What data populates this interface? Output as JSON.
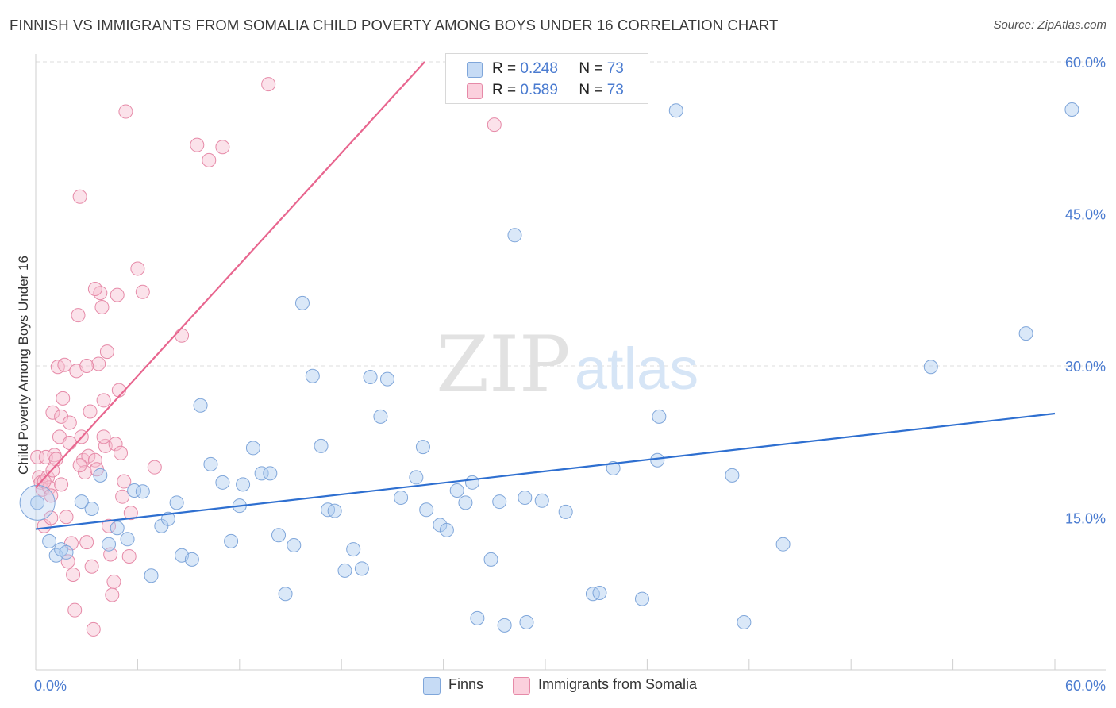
{
  "title": "FINNISH VS IMMIGRANTS FROM SOMALIA CHILD POVERTY AMONG BOYS UNDER 16 CORRELATION CHART",
  "source": "Source: ZipAtlas.com",
  "watermark": {
    "zip": "ZIP",
    "atlas": "atlas"
  },
  "legend": {
    "finns": {
      "r_label": "R =",
      "r_value": "0.248",
      "n_label": "N =",
      "n_value": "73"
    },
    "somalia": {
      "r_label": "R =",
      "r_value": "0.589",
      "n_label": "N =",
      "n_value": "73"
    }
  },
  "colors": {
    "finns_fill": "#aecbf0",
    "finns_stroke": "#7fa6da",
    "finns_line": "#2e6fd0",
    "somalia_fill": "#f7bfd0",
    "somalia_stroke": "#e68aa8",
    "somalia_line": "#e8668f",
    "axis_text": "#4a7bd0",
    "grid": "#dcdcdc"
  },
  "chart_data": {
    "type": "scatter",
    "title": "FINNISH VS IMMIGRANTS FROM SOMALIA CHILD POVERTY AMONG BOYS UNDER 16 CORRELATION CHART",
    "xlabel": "",
    "ylabel": "Child Poverty Among Boys Under 16",
    "xlim": [
      0,
      60
    ],
    "ylim": [
      0,
      60
    ],
    "x_tick_labels": [
      "0.0%",
      "60.0%"
    ],
    "y_ticks": [
      15,
      30,
      45,
      60
    ],
    "y_tick_labels": [
      "15.0%",
      "30.0%",
      "45.0%",
      "60.0%"
    ],
    "grid": true,
    "series": [
      {
        "name": "Finns",
        "r": 0.248,
        "n": 73,
        "trend": {
          "x": [
            0,
            60
          ],
          "y": [
            13.9,
            25.3
          ]
        },
        "points": [
          [
            0.1,
            16.5
          ],
          [
            0.8,
            12.7
          ],
          [
            1.2,
            11.3
          ],
          [
            1.5,
            11.9
          ],
          [
            1.8,
            11.6
          ],
          [
            2.7,
            16.6
          ],
          [
            3.3,
            15.9
          ],
          [
            3.8,
            19.2
          ],
          [
            4.3,
            12.4
          ],
          [
            4.8,
            14.0
          ],
          [
            5.4,
            12.9
          ],
          [
            5.8,
            17.7
          ],
          [
            6.3,
            17.6
          ],
          [
            6.8,
            9.3
          ],
          [
            7.4,
            14.2
          ],
          [
            7.8,
            14.9
          ],
          [
            8.3,
            16.5
          ],
          [
            8.6,
            11.3
          ],
          [
            9.2,
            10.9
          ],
          [
            9.7,
            26.1
          ],
          [
            10.3,
            20.3
          ],
          [
            11.0,
            18.5
          ],
          [
            11.5,
            12.7
          ],
          [
            12.0,
            16.2
          ],
          [
            12.2,
            18.3
          ],
          [
            12.8,
            21.9
          ],
          [
            13.3,
            19.4
          ],
          [
            13.8,
            19.4
          ],
          [
            14.3,
            13.3
          ],
          [
            14.7,
            7.5
          ],
          [
            15.2,
            12.3
          ],
          [
            15.7,
            36.2
          ],
          [
            16.3,
            29.0
          ],
          [
            16.8,
            22.1
          ],
          [
            17.2,
            15.8
          ],
          [
            17.6,
            15.7
          ],
          [
            18.2,
            9.8
          ],
          [
            18.7,
            11.9
          ],
          [
            19.2,
            10.0
          ],
          [
            19.7,
            28.9
          ],
          [
            20.3,
            25.0
          ],
          [
            20.7,
            28.7
          ],
          [
            21.5,
            17.0
          ],
          [
            22.4,
            19.0
          ],
          [
            22.8,
            22.0
          ],
          [
            23.0,
            15.8
          ],
          [
            23.8,
            14.3
          ],
          [
            24.2,
            13.8
          ],
          [
            24.8,
            17.7
          ],
          [
            25.3,
            16.5
          ],
          [
            25.7,
            18.5
          ],
          [
            26.0,
            5.1
          ],
          [
            26.8,
            10.9
          ],
          [
            27.3,
            16.6
          ],
          [
            27.6,
            4.4
          ],
          [
            28.2,
            42.9
          ],
          [
            28.8,
            17.0
          ],
          [
            28.9,
            4.7
          ],
          [
            29.8,
            16.7
          ],
          [
            31.2,
            15.6
          ],
          [
            32.8,
            7.5
          ],
          [
            33.2,
            7.6
          ],
          [
            34.0,
            19.9
          ],
          [
            35.7,
            7.0
          ],
          [
            36.6,
            20.7
          ],
          [
            36.7,
            25.0
          ],
          [
            37.7,
            55.2
          ],
          [
            41.0,
            19.2
          ],
          [
            41.7,
            4.7
          ],
          [
            44.0,
            12.4
          ],
          [
            52.7,
            29.9
          ],
          [
            58.3,
            33.2
          ],
          [
            61.0,
            55.3
          ]
        ]
      },
      {
        "name": "Immigrants from Somalia",
        "r": 0.589,
        "n": 73,
        "trend": {
          "x": [
            0,
            22.9
          ],
          "y": [
            18.0,
            60.0
          ]
        },
        "points": [
          [
            0.1,
            21.0
          ],
          [
            0.2,
            19.0
          ],
          [
            0.3,
            18.5
          ],
          [
            0.4,
            17.8
          ],
          [
            0.5,
            14.2
          ],
          [
            0.6,
            21.0
          ],
          [
            0.7,
            19.0
          ],
          [
            0.8,
            18.0
          ],
          [
            0.9,
            15.0
          ],
          [
            1.0,
            25.4
          ],
          [
            1.1,
            21.2
          ],
          [
            1.2,
            20.8
          ],
          [
            1.3,
            29.9
          ],
          [
            1.4,
            23.0
          ],
          [
            1.5,
            25.0
          ],
          [
            1.6,
            26.8
          ],
          [
            1.7,
            30.1
          ],
          [
            1.8,
            15.1
          ],
          [
            1.9,
            10.7
          ],
          [
            2.0,
            24.4
          ],
          [
            2.1,
            12.5
          ],
          [
            2.2,
            9.4
          ],
          [
            2.3,
            5.9
          ],
          [
            2.4,
            29.5
          ],
          [
            2.5,
            35.0
          ],
          [
            2.6,
            46.7
          ],
          [
            2.7,
            23.0
          ],
          [
            2.8,
            20.7
          ],
          [
            2.9,
            19.5
          ],
          [
            3.0,
            12.6
          ],
          [
            3.1,
            21.1
          ],
          [
            3.2,
            25.5
          ],
          [
            3.3,
            10.2
          ],
          [
            3.4,
            4.0
          ],
          [
            3.5,
            20.7
          ],
          [
            3.6,
            19.8
          ],
          [
            3.7,
            30.2
          ],
          [
            3.8,
            37.2
          ],
          [
            3.9,
            35.8
          ],
          [
            4.0,
            26.6
          ],
          [
            4.1,
            22.1
          ],
          [
            4.2,
            31.4
          ],
          [
            4.3,
            14.2
          ],
          [
            4.4,
            11.4
          ],
          [
            4.5,
            7.4
          ],
          [
            4.6,
            8.7
          ],
          [
            4.7,
            22.3
          ],
          [
            4.8,
            37.0
          ],
          [
            4.9,
            27.6
          ],
          [
            5.0,
            21.4
          ],
          [
            5.1,
            17.1
          ],
          [
            5.2,
            18.6
          ],
          [
            5.3,
            55.1
          ],
          [
            5.6,
            15.5
          ],
          [
            6.0,
            39.6
          ],
          [
            6.3,
            37.3
          ],
          [
            7.0,
            20.0
          ],
          [
            8.6,
            33.0
          ],
          [
            9.5,
            51.8
          ],
          [
            10.2,
            50.3
          ],
          [
            11.0,
            51.6
          ],
          [
            13.7,
            57.8
          ],
          [
            27.0,
            53.8
          ],
          [
            3.5,
            37.6
          ],
          [
            2.0,
            22.4
          ],
          [
            1.5,
            18.3
          ],
          [
            0.9,
            17.2
          ],
          [
            3.0,
            30.0
          ],
          [
            4.0,
            23.0
          ],
          [
            1.0,
            19.7
          ],
          [
            2.6,
            20.2
          ],
          [
            5.5,
            11.2
          ],
          [
            0.5,
            18.6
          ]
        ]
      }
    ]
  },
  "bottom_legend": {
    "finns": "Finns",
    "somalia": "Immigrants from Somalia"
  }
}
